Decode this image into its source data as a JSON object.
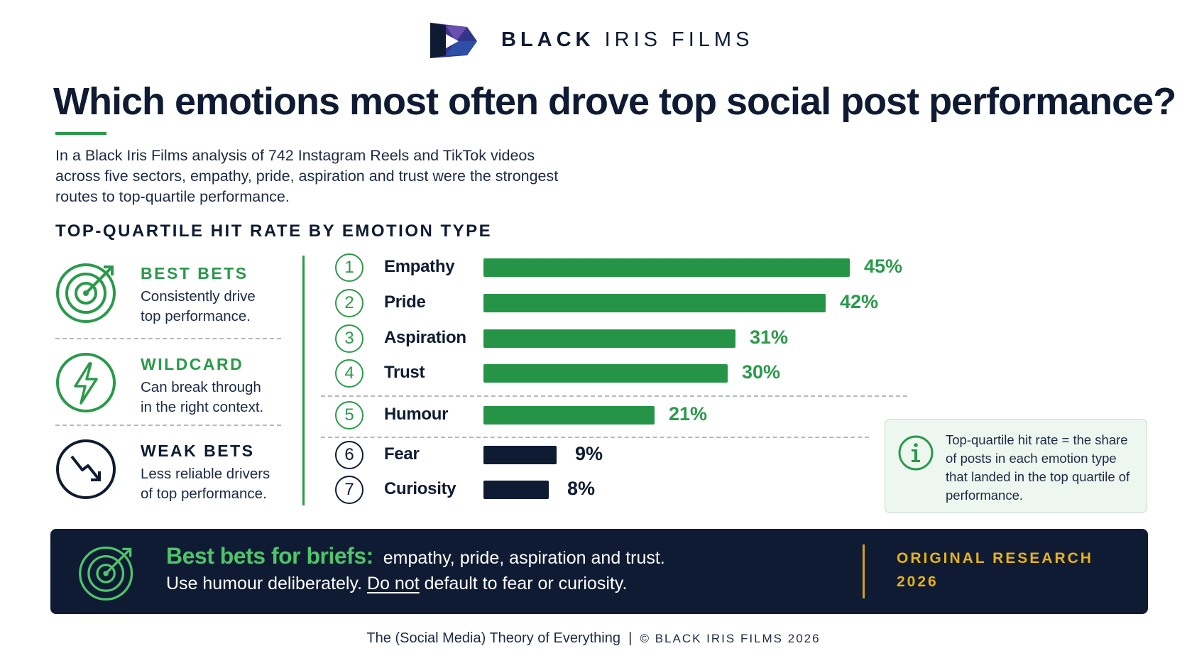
{
  "brand": {
    "bold": "BLACK",
    "light": "IRIS",
    "tail": "FILMS",
    "logo_icon": "black-iris-logo-icon"
  },
  "headline": "Which emotions most often drove top social post performance?",
  "intro": "In a Black Iris Films analysis of 742 Instagram Reels and TikTok videos across five sectors, empathy, pride, aspiration and trust were the strongest routes to top-quartile performance.",
  "colors": {
    "green": "#2a9a4a",
    "navy": "#0f1b33",
    "gold": "#e8b21a",
    "banner_green": "#4fc46a"
  },
  "legend": [
    {
      "title": "BEST BETS",
      "line1": "Consistently drive",
      "line2": "top performance.",
      "icon": "target-icon",
      "color": "green"
    },
    {
      "title": "WILDCARD",
      "line1": "Can break through",
      "line2": "in the right context.",
      "icon": "lightning-icon",
      "color": "green"
    },
    {
      "title": "WEAK BETS",
      "line1": "Less reliable drivers",
      "line2": "of top performance.",
      "icon": "trend-down-icon",
      "color": "navy"
    }
  ],
  "chart_data": {
    "type": "bar",
    "orientation": "horizontal",
    "title": "TOP-QUARTILE HIT RATE BY EMOTION TYPE",
    "categories": [
      "Empathy",
      "Pride",
      "Aspiration",
      "Trust",
      "Humour",
      "Fear",
      "Curiosity"
    ],
    "ranks": [
      "1",
      "2",
      "3",
      "4",
      "5",
      "6",
      "7"
    ],
    "values": [
      45,
      42,
      31,
      30,
      21,
      9,
      8
    ],
    "value_labels": [
      "45%",
      "42%",
      "31%",
      "30%",
      "21%",
      "9%",
      "8%"
    ],
    "groups": [
      "best",
      "best",
      "best",
      "best",
      "wildcard",
      "weak",
      "weak"
    ],
    "group_colors": {
      "best": "#269447",
      "wildcard": "#269447",
      "weak": "#0f1b33"
    },
    "xlim": [
      0,
      45
    ],
    "grid": false
  },
  "info": {
    "icon": "info-icon",
    "text": "Top-quartile hit rate = the share of posts in each emotion type that landed in the top quartile of performance."
  },
  "banner": {
    "icon": "target-icon",
    "heading": "Best bets for briefs:",
    "line1_text": "empathy, pride, aspiration and trust.",
    "line2_a": "Use humour deliberately.",
    "line2_underlined": "Do not",
    "line2_b": "default to fear or curiosity.",
    "right1": "ORIGINAL RESEARCH",
    "right2": "2026"
  },
  "footer": {
    "left": "The (Social Media) Theory of Everything",
    "sep": "|",
    "right": "© BLACK IRIS FILMS 2026"
  }
}
